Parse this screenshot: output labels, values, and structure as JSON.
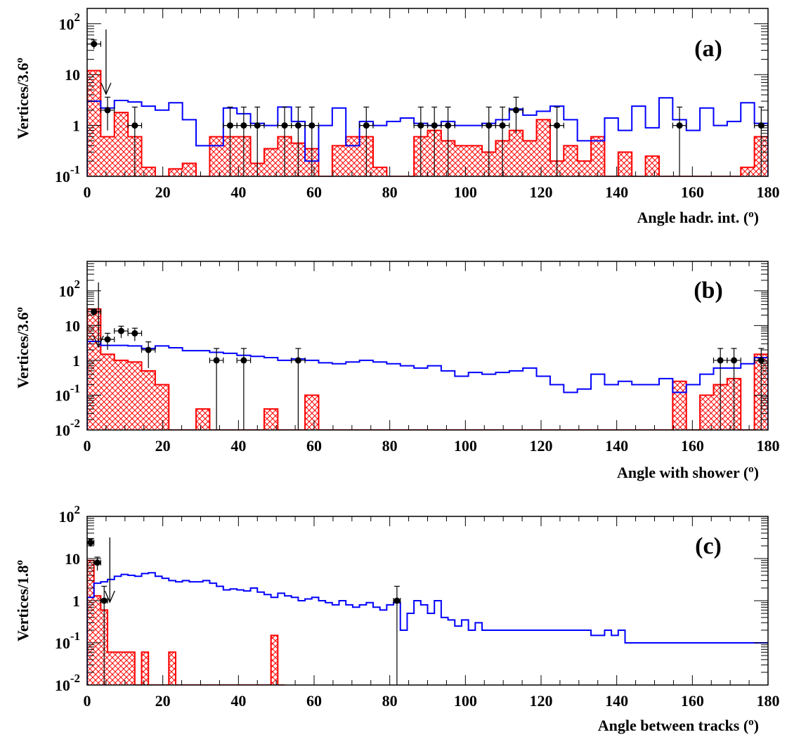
{
  "colors": {
    "data": "#000000",
    "signal": "#0000ff",
    "background": "#ff0000"
  },
  "chart_data": [
    {
      "type": "histogram",
      "panel_label": "(a)",
      "xlabel": "Angle hadr. int. (",
      "xlabel_sup": "o",
      "xlabel_end": ")",
      "ylabel": "Vertices/3.6",
      "ylabel_sup": "o",
      "log_y": true,
      "xlim": [
        0,
        180
      ],
      "ylim": [
        0.1,
        200
      ],
      "bin_width": 3.6,
      "x_ticks": [
        "0",
        "20",
        "40",
        "60",
        "80",
        "100",
        "120",
        "140",
        "160",
        "180"
      ],
      "y_ticks": [
        {
          "base": "10",
          "exp": "-1"
        },
        {
          "base": "1",
          "exp": ""
        },
        {
          "base": "10",
          "exp": ""
        },
        {
          "base": "10",
          "exp": "2"
        }
      ],
      "arrow_x": 5,
      "background_mc": [
        12,
        0.6,
        1.8,
        0.6,
        0.15,
        0.1,
        0.14,
        0.18,
        0.1,
        0.6,
        0.6,
        0.6,
        0.18,
        0.35,
        0.6,
        0.45,
        0.35,
        0.1,
        0.4,
        0.6,
        0.6,
        0.15,
        0.1,
        0.1,
        0.6,
        0.8,
        0.5,
        0.4,
        0.4,
        0.3,
        0.5,
        0.8,
        0.5,
        1.3,
        0.2,
        0.4,
        0.2,
        0.6,
        0.1,
        0.3,
        0.1,
        0.25,
        0.1,
        0.1,
        0.1,
        0.1,
        0.1,
        0.1,
        0.15,
        0.6
      ],
      "signal_mc": [
        3,
        2.2,
        3.1,
        2.9,
        2.4,
        2.0,
        2.8,
        1.3,
        0.4,
        0.4,
        2.2,
        1.7,
        1.1,
        1.0,
        2.3,
        1.2,
        0.2,
        1.0,
        2.2,
        0.4,
        1.2,
        1.0,
        1.2,
        1.4,
        1.1,
        1.0,
        1.2,
        1.0,
        1.0,
        1.1,
        1.3,
        2.1,
        1.6,
        1.9,
        2.4,
        1.3,
        0.5,
        0.5,
        1.4,
        0.8,
        2.4,
        0.9,
        3.5,
        1.3,
        0.8,
        2.2,
        1.0,
        1.2,
        2.8,
        1.1
      ],
      "data_points": [
        {
          "x": 1.8,
          "y": 40,
          "lo": 8,
          "hi": 8
        },
        {
          "x": 5.4,
          "y": 2,
          "lo": 1.2,
          "hi": 1.6
        },
        {
          "x": 12.6,
          "y": 1,
          "lo": 1,
          "hi": 1.3
        },
        {
          "x": 37.8,
          "y": 1,
          "lo": 1,
          "hi": 1.3
        },
        {
          "x": 41.4,
          "y": 1,
          "lo": 1,
          "hi": 1.3
        },
        {
          "x": 45,
          "y": 1,
          "lo": 1,
          "hi": 1.3
        },
        {
          "x": 52.2,
          "y": 1,
          "lo": 1,
          "hi": 1.3
        },
        {
          "x": 55.8,
          "y": 1,
          "lo": 1,
          "hi": 1.3
        },
        {
          "x": 59.4,
          "y": 1,
          "lo": 1,
          "hi": 1.3
        },
        {
          "x": 73.8,
          "y": 1,
          "lo": 1,
          "hi": 1.3
        },
        {
          "x": 88.2,
          "y": 1,
          "lo": 1,
          "hi": 1.3
        },
        {
          "x": 91.8,
          "y": 1,
          "lo": 1,
          "hi": 1.3
        },
        {
          "x": 95.4,
          "y": 1,
          "lo": 1,
          "hi": 1.3
        },
        {
          "x": 106.2,
          "y": 1,
          "lo": 1,
          "hi": 1.3
        },
        {
          "x": 109.8,
          "y": 1,
          "lo": 1,
          "hi": 1.3
        },
        {
          "x": 113.4,
          "y": 2,
          "lo": 1.3,
          "hi": 1.6
        },
        {
          "x": 124.2,
          "y": 1,
          "lo": 1,
          "hi": 1.3
        },
        {
          "x": 156.6,
          "y": 1,
          "lo": 1,
          "hi": 1.3
        },
        {
          "x": 178.2,
          "y": 1,
          "lo": 1,
          "hi": 1.3
        }
      ]
    },
    {
      "type": "histogram",
      "panel_label": "(b)",
      "xlabel": "Angle with shower (",
      "xlabel_sup": "o",
      "xlabel_end": ")",
      "ylabel": "Vertices/3.6",
      "ylabel_sup": "o",
      "log_y": true,
      "xlim": [
        0,
        180
      ],
      "ylim": [
        0.01,
        700
      ],
      "bin_width": 3.6,
      "x_ticks": [
        "0",
        "20",
        "40",
        "60",
        "80",
        "100",
        "120",
        "140",
        "160",
        "180"
      ],
      "y_ticks": [
        {
          "base": "10",
          "exp": "-2"
        },
        {
          "base": "10",
          "exp": "-1"
        },
        {
          "base": "1",
          "exp": ""
        },
        {
          "base": "10",
          "exp": ""
        },
        {
          "base": "10",
          "exp": "2"
        }
      ],
      "arrow_x": 3,
      "background_mc": [
        30,
        1.5,
        1.0,
        0.9,
        0.5,
        0.2,
        0.01,
        0.01,
        0.04,
        0.01,
        0.01,
        0.01,
        0.01,
        0.04,
        0.01,
        0.01,
        0.1,
        0.01,
        0.01,
        0.01,
        0.01,
        0.01,
        0.01,
        0.01,
        0.01,
        0.01,
        0.01,
        0.01,
        0.01,
        0.01,
        0.01,
        0.01,
        0.01,
        0.01,
        0.01,
        0.01,
        0.01,
        0.01,
        0.01,
        0.01,
        0.01,
        0.01,
        0.01,
        0.25,
        0.01,
        0.1,
        0.2,
        0.3,
        0.01,
        1.5
      ],
      "signal_mc": [
        3.5,
        2.7,
        2.7,
        2.6,
        2.2,
        2.6,
        2.3,
        1.9,
        1.9,
        1.7,
        1.6,
        1.4,
        1.3,
        1.2,
        1.0,
        1.1,
        1.0,
        0.85,
        0.8,
        0.9,
        1.0,
        0.9,
        0.8,
        0.7,
        0.6,
        0.7,
        0.5,
        0.35,
        0.45,
        0.4,
        0.45,
        0.5,
        0.6,
        0.35,
        0.2,
        0.12,
        0.15,
        0.4,
        0.2,
        0.25,
        0.2,
        0.2,
        0.3,
        0.12,
        0.2,
        0.4,
        0.6,
        0.6,
        0.8,
        1.2
      ],
      "data_points": [
        {
          "x": 1.8,
          "y": 25,
          "lo": 5,
          "hi": 5
        },
        {
          "x": 5.4,
          "y": 4,
          "lo": 2,
          "hi": 2
        },
        {
          "x": 9,
          "y": 7,
          "lo": 2.6,
          "hi": 2.6
        },
        {
          "x": 12.6,
          "y": 6,
          "lo": 2.4,
          "hi": 2.4
        },
        {
          "x": 16.2,
          "y": 2,
          "lo": 1.4,
          "hi": 1.4
        },
        {
          "x": 34.2,
          "y": 1,
          "lo": 1,
          "hi": 1.2
        },
        {
          "x": 41.4,
          "y": 1,
          "lo": 1,
          "hi": 1.2
        },
        {
          "x": 55.8,
          "y": 1,
          "lo": 1,
          "hi": 1.2
        },
        {
          "x": 167.4,
          "y": 1,
          "lo": 1,
          "hi": 1.2
        },
        {
          "x": 171,
          "y": 1,
          "lo": 1,
          "hi": 1.2
        },
        {
          "x": 178.2,
          "y": 1,
          "lo": 1,
          "hi": 1.2
        }
      ]
    },
    {
      "type": "histogram",
      "panel_label": "(c)",
      "xlabel": "Angle between tracks (",
      "xlabel_sup": "o",
      "xlabel_end": ")",
      "ylabel": "Vertices/1.8",
      "ylabel_sup": "o",
      "log_y": true,
      "xlim": [
        0,
        180
      ],
      "ylim": [
        0.01,
        100
      ],
      "bin_width": 1.8,
      "x_ticks": [
        "0",
        "20",
        "40",
        "60",
        "80",
        "100",
        "120",
        "140",
        "160",
        "180"
      ],
      "y_ticks": [
        {
          "base": "10",
          "exp": "-2"
        },
        {
          "base": "10",
          "exp": "-1"
        },
        {
          "base": "1",
          "exp": ""
        },
        {
          "base": "10",
          "exp": ""
        },
        {
          "base": "10",
          "exp": "2"
        }
      ],
      "arrow_x": 6,
      "background_mc": [
        9,
        1.3,
        0.6,
        0.06,
        0.06,
        0.06,
        0.06,
        0.01,
        0.06,
        0.01,
        0.01,
        0.01,
        0.06,
        0.01,
        0.01,
        0.01,
        0.01,
        0.01,
        0.01,
        0.01,
        0.01,
        0.01,
        0.01,
        0.01,
        0.01,
        0.01,
        0.01,
        0.15,
        0.01
      ],
      "signal_mc": [
        1.2,
        2.6,
        2.8,
        3.2,
        3.8,
        4.2,
        4.0,
        3.8,
        4.4,
        4.6,
        3.8,
        3.4,
        3.0,
        2.8,
        3.0,
        2.8,
        2.8,
        3.0,
        2.6,
        2.2,
        1.8,
        1.9,
        1.8,
        1.7,
        2.0,
        1.6,
        1.4,
        1.2,
        1.5,
        1.3,
        1.2,
        1.0,
        1.1,
        1.2,
        1.0,
        0.9,
        0.8,
        1.0,
        0.8,
        0.7,
        0.8,
        0.9,
        0.7,
        0.6,
        0.8,
        0.9,
        0.2,
        0.5,
        1.0,
        0.8,
        0.5,
        1.0,
        0.4,
        0.35,
        0.25,
        0.35,
        0.2,
        0.3,
        0.2,
        0.2,
        0.2,
        0.2,
        0.2,
        0.2,
        0.2,
        0.2,
        0.2,
        0.2,
        0.2,
        0.2,
        0.2,
        0.2,
        0.2,
        0.2,
        0.15,
        0.15,
        0.2,
        0.15,
        0.2,
        0.1,
        0.1,
        0.1,
        0.1,
        0.1,
        0.1,
        0.1,
        0.1,
        0.1,
        0.1,
        0.1,
        0.1,
        0.1,
        0.1,
        0.1,
        0.1,
        0.1,
        0.1,
        0.1,
        0.1,
        0.1,
        0.1,
        0.01,
        0.01,
        0.01,
        0.01,
        0.01,
        0.01,
        0.01,
        0.01,
        0.01,
        0.01,
        0.01,
        0.01,
        0.01,
        0.01,
        0.01,
        0.01,
        0.01,
        0.01,
        0.01,
        0.01,
        0.01,
        0.01,
        0.01,
        0.01,
        0.01,
        0.01,
        0.01,
        0.01,
        0.01,
        0.01,
        0.01,
        0.01,
        0.01,
        0.01,
        0.01,
        0.01,
        0.01,
        0.01,
        0.01,
        0.01,
        0.01,
        0.01,
        0.01,
        0.01,
        0.01,
        0.01,
        0.01,
        0.01,
        0.01,
        0.01,
        0.01,
        0.01,
        0.01,
        0.01,
        0.01,
        0.01,
        0.01,
        0.01,
        0.01,
        0.01,
        0.01,
        0.01,
        0.01,
        0.01,
        0.01,
        0.01,
        0.01,
        0.01,
        0.01,
        0.01,
        0.01,
        0.01,
        0.01,
        0.01,
        0.01,
        0.01,
        0.01,
        0.01,
        0.01,
        0.01,
        0.01,
        0.01,
        0.01,
        0.01,
        0.01,
        0.01,
        0.01,
        0.01,
        0.01,
        0.01,
        0.01,
        0.01,
        0.01,
        0.01,
        0.01,
        0.01,
        0.01,
        0.01,
        0.01,
        0.01,
        0.01,
        0.01,
        0.01,
        0.01
      ],
      "data_points": [
        {
          "x": 0.9,
          "y": 24,
          "lo": 5,
          "hi": 5
        },
        {
          "x": 2.7,
          "y": 8,
          "lo": 2.8,
          "hi": 2.8
        },
        {
          "x": 4.5,
          "y": 1,
          "lo": 1,
          "hi": 1.2
        },
        {
          "x": 81.9,
          "y": 1,
          "lo": 1,
          "hi": 1.2
        }
      ]
    }
  ]
}
